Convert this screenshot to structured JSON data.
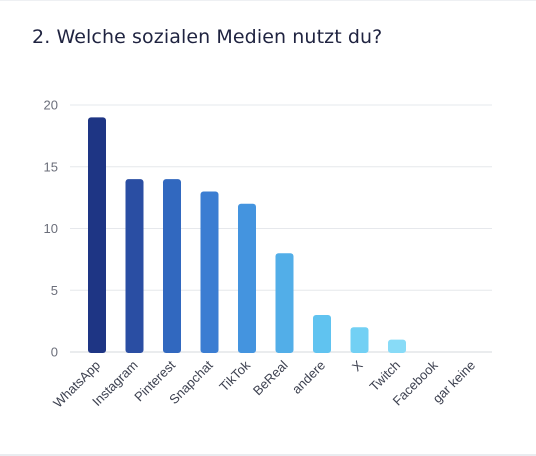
{
  "question": {
    "title": "2. Welche sozialen Medien nutzt du?"
  },
  "chart_data": {
    "type": "bar",
    "categories": [
      "WhatsApp",
      "Instagram",
      "Pinterest",
      "Snapchat",
      "TikTok",
      "BeReal",
      "andere",
      "X",
      "Twitch",
      "Facebook",
      "gar keine"
    ],
    "values": [
      19,
      14,
      14,
      13,
      12,
      8,
      3,
      2,
      1,
      0,
      0
    ],
    "ylim": [
      0,
      20
    ],
    "yticks": [
      0,
      5,
      10,
      15,
      20
    ],
    "grid": true,
    "legend": "none",
    "bar_colors": [
      "#1e3584",
      "#2a4ea3",
      "#3168bf",
      "#3b7dd2",
      "#4494df",
      "#52aee8",
      "#60c3f0",
      "#72d0f4",
      "#88dbf7",
      "#9fe3f8",
      "#b5ebfa"
    ]
  }
}
